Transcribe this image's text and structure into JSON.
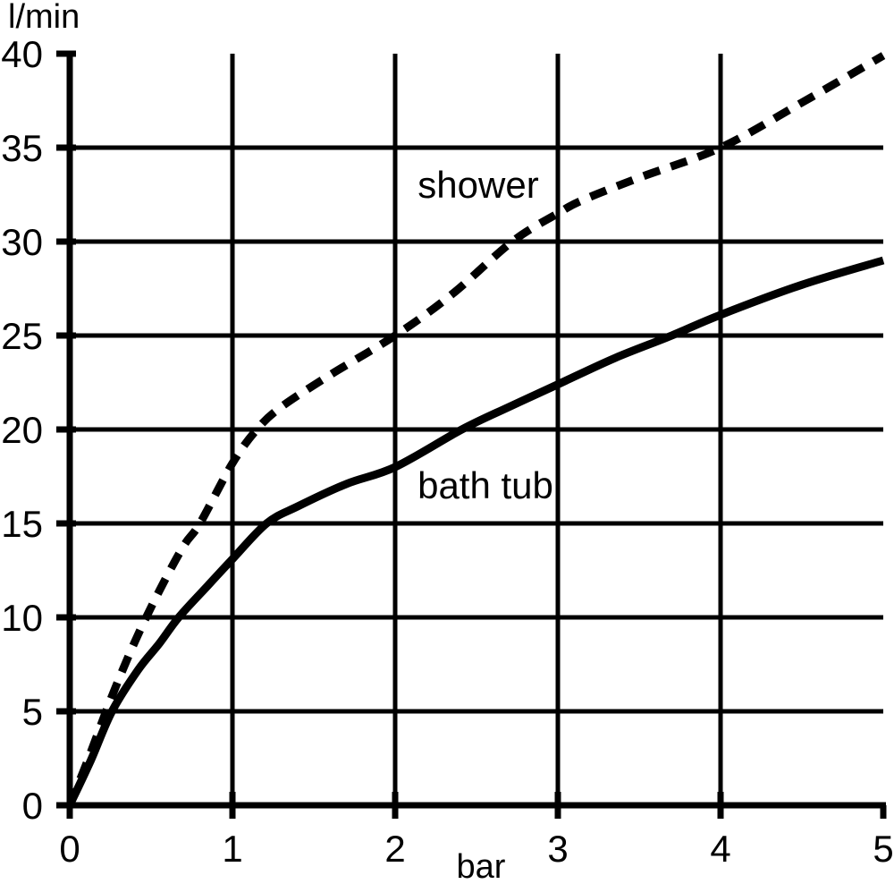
{
  "page": {
    "background_color": "#ffffff",
    "foreground_color": "#000000"
  },
  "chart_data": {
    "type": "line",
    "title": "",
    "xlabel": "bar",
    "ylabel": "l/min",
    "xlim": [
      0,
      5
    ],
    "ylim": [
      0,
      40
    ],
    "x_ticks": [
      "0",
      "1",
      "2",
      "3",
      "4",
      "5"
    ],
    "y_ticks": [
      "0",
      "5",
      "10",
      "15",
      "20",
      "25",
      "30",
      "35",
      "40"
    ],
    "grid": true,
    "legend_position": "inline-labels",
    "line_color": "#000000",
    "series": [
      {
        "name": "shower",
        "style": "dashed",
        "points": [
          [
            0,
            0
          ],
          [
            0.12,
            2.6
          ],
          [
            0.25,
            5.6
          ],
          [
            0.4,
            8.7
          ],
          [
            0.55,
            11.4
          ],
          [
            0.7,
            13.8
          ],
          [
            0.8,
            15
          ],
          [
            1.0,
            18.2
          ],
          [
            1.15,
            20
          ],
          [
            1.3,
            21.2
          ],
          [
            1.6,
            22.9
          ],
          [
            2.0,
            25
          ],
          [
            2.35,
            27.2
          ],
          [
            2.72,
            30
          ],
          [
            3.0,
            31.5
          ],
          [
            3.15,
            32.2
          ],
          [
            3.5,
            33.4
          ],
          [
            4.0,
            35
          ],
          [
            4.5,
            37.4
          ],
          [
            5.0,
            39.9
          ]
        ]
      },
      {
        "name": "bath tub",
        "style": "solid",
        "points": [
          [
            0,
            0
          ],
          [
            0.13,
            2.4
          ],
          [
            0.26,
            5
          ],
          [
            0.42,
            7.2
          ],
          [
            0.55,
            8.6
          ],
          [
            0.67,
            10
          ],
          [
            0.85,
            11.7
          ],
          [
            1.0,
            13.1
          ],
          [
            1.21,
            15
          ],
          [
            1.4,
            15.9
          ],
          [
            1.7,
            17.1
          ],
          [
            2.0,
            18
          ],
          [
            2.41,
            20
          ],
          [
            2.7,
            21.2
          ],
          [
            3.0,
            22.4
          ],
          [
            3.35,
            23.8
          ],
          [
            3.7,
            25
          ],
          [
            4.0,
            26.1
          ],
          [
            4.5,
            27.7
          ],
          [
            5.0,
            29
          ]
        ]
      }
    ]
  }
}
